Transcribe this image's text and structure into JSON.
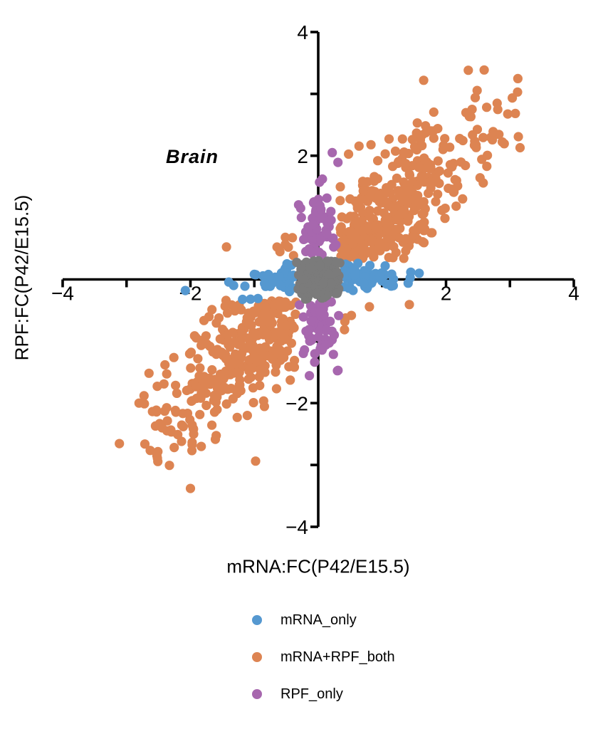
{
  "figure": {
    "background": "#ffffff"
  },
  "chart_data": {
    "type": "scatter",
    "title": "Brain",
    "xlabel": "mRNA:FC(P42/E15.5)",
    "ylabel": "RPF:FC(P42/E15.5)",
    "xlim": [
      -4,
      4
    ],
    "ylim": [
      -4,
      4
    ],
    "grid": false,
    "axis_color": "#000000",
    "x_ticks": [
      {
        "v": -4,
        "label": "−4"
      },
      {
        "v": -3,
        "label": ""
      },
      {
        "v": -2,
        "label": "−2"
      },
      {
        "v": -1,
        "label": ""
      },
      {
        "v": 1,
        "label": ""
      },
      {
        "v": 2,
        "label": "2"
      },
      {
        "v": 3,
        "label": ""
      },
      {
        "v": 4,
        "label": "4"
      }
    ],
    "y_ticks": [
      {
        "v": -4,
        "label": "−4"
      },
      {
        "v": -3,
        "label": ""
      },
      {
        "v": -2,
        "label": "−2"
      },
      {
        "v": -1,
        "label": ""
      },
      {
        "v": 1,
        "label": ""
      },
      {
        "v": 2,
        "label": "2"
      },
      {
        "v": 3,
        "label": ""
      },
      {
        "v": 4,
        "label": "4"
      }
    ],
    "marker_radius_px": 6.6,
    "random_seed": 7,
    "series": [
      {
        "name": "mRNA+RPF_both",
        "color": "#DD8452",
        "kind": "correlated",
        "n": 720,
        "mean": [
          0.1,
          0.1
        ],
        "sd": [
          1.25,
          1.25
        ],
        "corr": 0.9,
        "inner_exclusion": 0.34,
        "clip": [
          3.3,
          3.45
        ],
        "extra_points": [
          [
            3.12,
            3.03
          ],
          [
            1.65,
            3.22
          ],
          [
            -2.0,
            -3.38
          ]
        ]
      },
      {
        "name": "mRNA_only",
        "color": "#5598D0",
        "kind": "h_band",
        "n": 110,
        "inner": 0.38,
        "spread": 0.42,
        "max": 1.62,
        "cross_sd": 0.13,
        "cross_max": 0.34,
        "extra_points": [
          [
            -2.08,
            -0.18
          ],
          [
            1.58,
            0.1
          ]
        ]
      },
      {
        "name": "RPF_only",
        "color": "#A767AE",
        "kind": "v_band",
        "n": 130,
        "inner": 0.36,
        "spread": 0.55,
        "max_pos": 2.0,
        "max_neg": 1.7,
        "cross_sd": 0.14,
        "cross_max": 0.33,
        "extra_points": [
          [
            0.22,
            2.05
          ],
          [
            0.31,
            -1.47
          ]
        ]
      },
      {
        "name": "no_change",
        "color": "#7B7B7B",
        "kind": "center",
        "n": 200,
        "sd": [
          0.17,
          0.16
        ],
        "max": [
          0.34,
          0.32
        ],
        "extra_points": []
      }
    ],
    "legend": {
      "position": "below-plot",
      "items": [
        {
          "label": "mRNA_only",
          "color": "#5598D0"
        },
        {
          "label": "mRNA+RPF_both",
          "color": "#DD8452"
        },
        {
          "label": "RPF_only",
          "color": "#A767AE"
        }
      ]
    }
  }
}
